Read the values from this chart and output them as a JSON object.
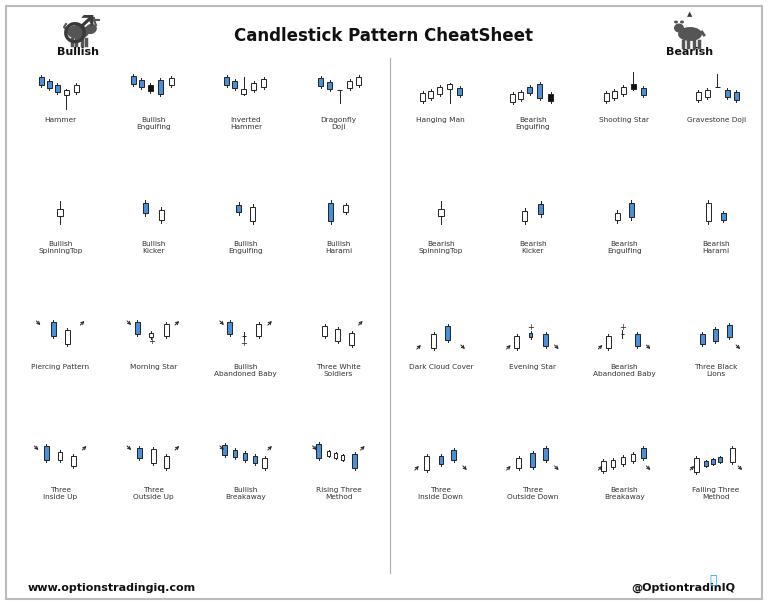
{
  "title": "Candlestick Pattern CheatSheet",
  "bg_color": "#ffffff",
  "bull_color": "#4a90d9",
  "bear_color": "#ffffff",
  "black_color": "#111111",
  "line_color": "#222222",
  "gray_color": "#888888",
  "title_color": "#111111",
  "footer_left": "www.optionstradingiq.com",
  "footer_right": "@OptiontradinIQ",
  "bullish_label": "Bullish",
  "bearish_label": "Bearish",
  "bull_names": [
    "Hammer",
    "Bullish\nEngulfing",
    "Inverted\nHammer",
    "Dragonfly\nDoji",
    "Bullish\nSpinningTop",
    "Bullish\nKicker",
    "Bullish\nEngulfing",
    "Bullish\nHarami",
    "Piercing Pattern",
    "Morning Star",
    "Bullish\nAbandoned Baby",
    "Three White\nSoldiers",
    "Three\nInside Up",
    "Three\nOutside Up",
    "Bullish\nBreakaway",
    "Rising Three\nMethod"
  ],
  "bear_names": [
    "Hanging Man",
    "Bearish\nEngulfing",
    "Shooting Star",
    "Gravestone Doji",
    "Bearish\nSpinningTop",
    "Bearish\nKicker",
    "Bearish\nEngulfing",
    "Bearish\nHarami",
    "Dark Cloud Cover",
    "Evening Star",
    "Bearish\nAbandoned Baby",
    "Three Black\nLions",
    "Three\nInside Down",
    "Three\nOutside Down",
    "Bearish\nBreakaway",
    "Falling Three\nMethod"
  ]
}
